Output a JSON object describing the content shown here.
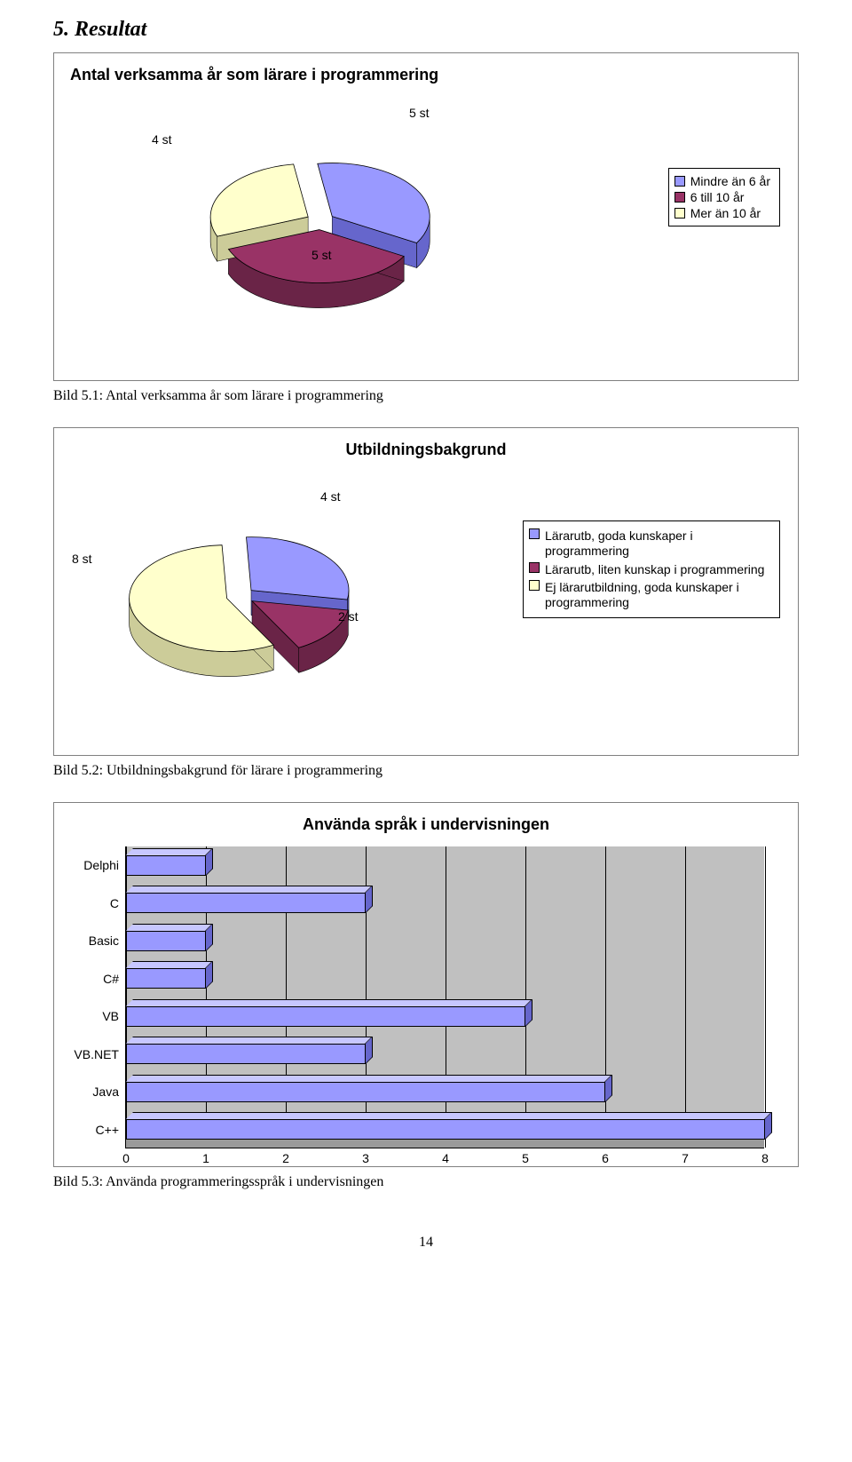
{
  "heading": "5. Resultat",
  "chart1": {
    "type": "pie-3d",
    "title": "Antal verksamma år som lärare i programmering",
    "title_fontsize": 18,
    "slices": [
      {
        "label": "Mindre än 6 år",
        "value": 5,
        "data_label": "5 st",
        "color": "#9999ff",
        "side_color": "#6666cc"
      },
      {
        "label": "6 till 10 år",
        "value": 5,
        "data_label": "5 st",
        "color": "#993366",
        "side_color": "#6a2447"
      },
      {
        "label": "Mer än 10 år",
        "value": 4,
        "data_label": "4 st",
        "color": "#ffffcc",
        "side_color": "#cccc99"
      }
    ],
    "background_color": "#ffffff",
    "border_color": "#808080",
    "legend_border": "#000000"
  },
  "caption1": "Bild 5.1: Antal verksamma år som lärare i programmering",
  "chart2": {
    "type": "pie-3d",
    "title": "Utbildningsbakgrund",
    "title_fontsize": 18,
    "slices": [
      {
        "label": "Lärarutb, goda kunskaper i programmering",
        "value": 4,
        "data_label": "4 st",
        "color": "#9999ff",
        "side_color": "#6666cc"
      },
      {
        "label": "Lärarutb, liten kunskap i programmering",
        "value": 2,
        "data_label": "2 st",
        "color": "#993366",
        "side_color": "#6a2447"
      },
      {
        "label": "Ej lärarutbildning, goda kunskaper i programmering",
        "value": 8,
        "data_label": "8 st",
        "color": "#ffffcc",
        "side_color": "#cccc99"
      }
    ],
    "background_color": "#ffffff",
    "border_color": "#808080",
    "legend_border": "#000000"
  },
  "caption2": "Bild 5.2: Utbildningsbakgrund för lärare i programmering",
  "chart3": {
    "type": "bar-horizontal-3d",
    "title": "Använda språk i undervisningen",
    "title_fontsize": 18,
    "categories": [
      "Delphi",
      "C",
      "Basic",
      "C#",
      "VB",
      "VB.NET",
      "Java",
      "C++"
    ],
    "values": [
      1,
      3,
      1,
      1,
      5,
      3,
      6,
      8
    ],
    "bar_face_color": "#9999ff",
    "bar_top_color": "#c7c7ff",
    "bar_side_color": "#6666cc",
    "xlim": [
      0,
      8
    ],
    "xtick_step": 1,
    "background_color": "#c0c0c0",
    "grid_color": "#000000",
    "bar_height_ratio": 0.55,
    "label_fontsize": 14
  },
  "caption3": "Bild 5.3: Använda programmeringsspråk i undervisningen",
  "page_number": "14"
}
